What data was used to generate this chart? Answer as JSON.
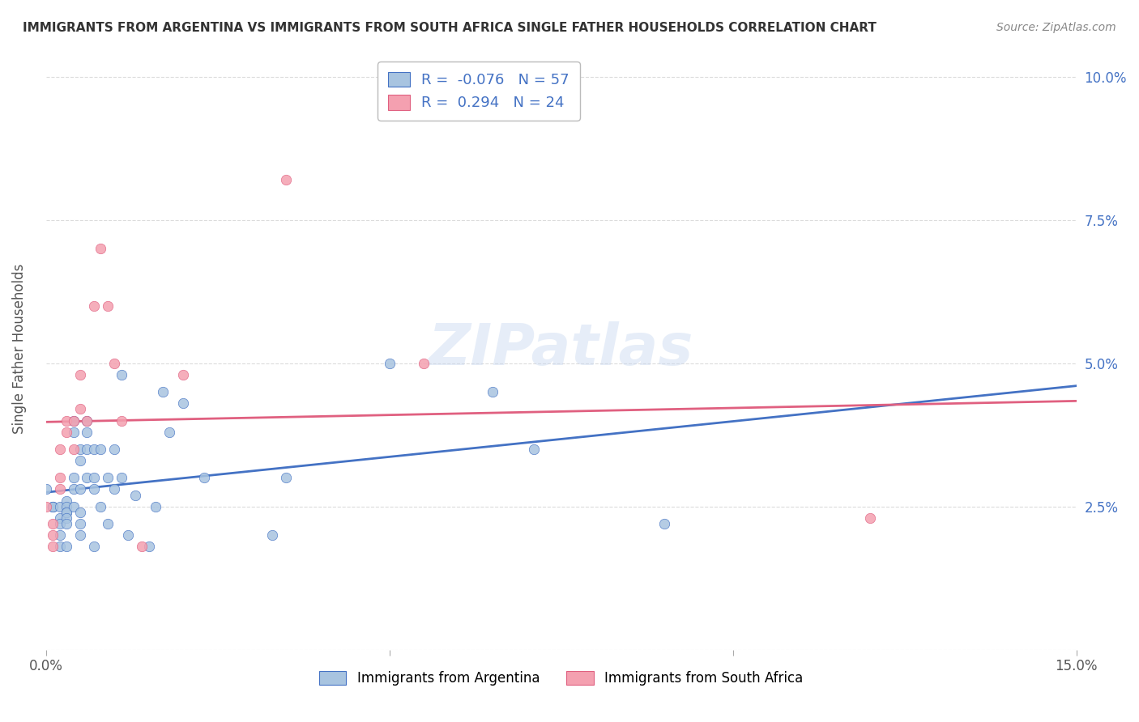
{
  "title": "IMMIGRANTS FROM ARGENTINA VS IMMIGRANTS FROM SOUTH AFRICA SINGLE FATHER HOUSEHOLDS CORRELATION CHART",
  "source": "Source: ZipAtlas.com",
  "ylabel": "Single Father Households",
  "R_argentina": -0.076,
  "N_argentina": 57,
  "R_south_africa": 0.294,
  "N_south_africa": 24,
  "color_argentina": "#a8c4e0",
  "color_south_africa": "#f4a0b0",
  "line_color_argentina": "#4472c4",
  "line_color_south_africa": "#e06080",
  "watermark": "ZIPatlas",
  "argentina_x": [
    0.0,
    0.001,
    0.001,
    0.001,
    0.002,
    0.002,
    0.002,
    0.002,
    0.002,
    0.003,
    0.003,
    0.003,
    0.003,
    0.003,
    0.003,
    0.003,
    0.004,
    0.004,
    0.004,
    0.004,
    0.004,
    0.005,
    0.005,
    0.005,
    0.005,
    0.005,
    0.005,
    0.006,
    0.006,
    0.006,
    0.006,
    0.007,
    0.007,
    0.007,
    0.007,
    0.008,
    0.008,
    0.009,
    0.009,
    0.01,
    0.01,
    0.011,
    0.011,
    0.012,
    0.013,
    0.015,
    0.016,
    0.017,
    0.018,
    0.02,
    0.023,
    0.033,
    0.035,
    0.05,
    0.065,
    0.071,
    0.09
  ],
  "argentina_y": [
    0.028,
    0.025,
    0.025,
    0.025,
    0.025,
    0.023,
    0.022,
    0.02,
    0.018,
    0.026,
    0.025,
    0.024,
    0.024,
    0.023,
    0.022,
    0.018,
    0.04,
    0.038,
    0.03,
    0.028,
    0.025,
    0.035,
    0.033,
    0.028,
    0.024,
    0.022,
    0.02,
    0.04,
    0.038,
    0.035,
    0.03,
    0.035,
    0.03,
    0.028,
    0.018,
    0.035,
    0.025,
    0.03,
    0.022,
    0.035,
    0.028,
    0.048,
    0.03,
    0.02,
    0.027,
    0.018,
    0.025,
    0.045,
    0.038,
    0.043,
    0.03,
    0.02,
    0.03,
    0.05,
    0.045,
    0.035,
    0.022
  ],
  "south_africa_x": [
    0.0,
    0.001,
    0.001,
    0.001,
    0.002,
    0.002,
    0.002,
    0.003,
    0.003,
    0.004,
    0.004,
    0.005,
    0.005,
    0.006,
    0.007,
    0.008,
    0.009,
    0.01,
    0.011,
    0.014,
    0.02,
    0.035,
    0.055,
    0.12
  ],
  "south_africa_y": [
    0.025,
    0.02,
    0.022,
    0.018,
    0.035,
    0.03,
    0.028,
    0.04,
    0.038,
    0.035,
    0.04,
    0.048,
    0.042,
    0.04,
    0.06,
    0.07,
    0.06,
    0.05,
    0.04,
    0.018,
    0.048,
    0.082,
    0.05,
    0.023
  ],
  "xlim": [
    0.0,
    0.15
  ],
  "ylim": [
    0.0,
    0.105
  ],
  "yticks": [
    0.0,
    0.025,
    0.05,
    0.075,
    0.1
  ],
  "ytick_labels": [
    "",
    "2.5%",
    "5.0%",
    "7.5%",
    "10.0%"
  ],
  "xticks": [
    0.0,
    0.05,
    0.1,
    0.15
  ],
  "xtick_labels": [
    "0.0%",
    "",
    "",
    "15.0%"
  ]
}
